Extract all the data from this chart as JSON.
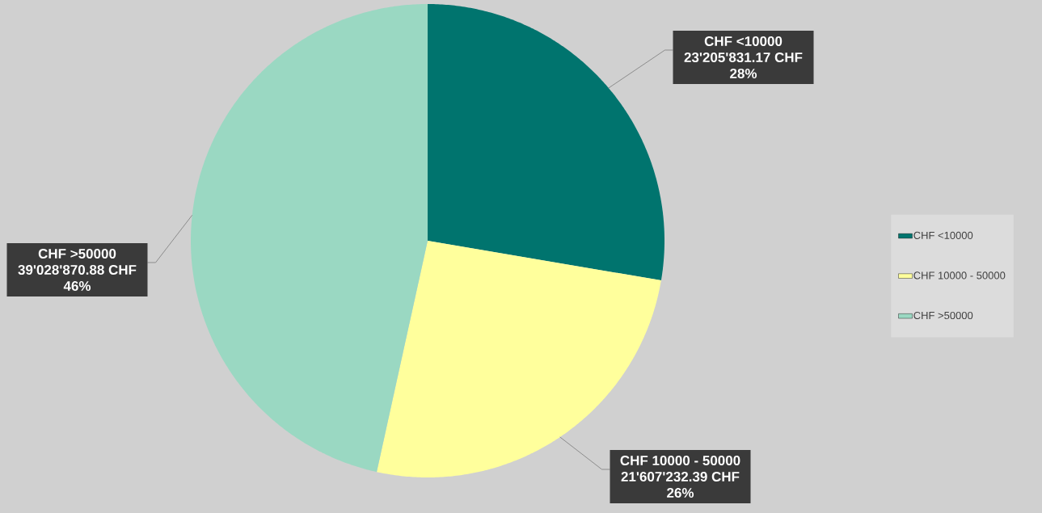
{
  "chart_data": {
    "type": "pie",
    "categories": [
      "CHF <10000",
      "CHF 10000 - 50000",
      "CHF >50000"
    ],
    "values": [
      23205831.17,
      21607232.39,
      39028870.88
    ],
    "colors": [
      "#00746e",
      "#ffff9c",
      "#9ad8c2"
    ],
    "value_labels": [
      "23'205'831.17 CHF 28%",
      "21'607'232.39 CHF 26%",
      "39'028'870.88 CHF 46%"
    ],
    "legend": "right"
  }
}
